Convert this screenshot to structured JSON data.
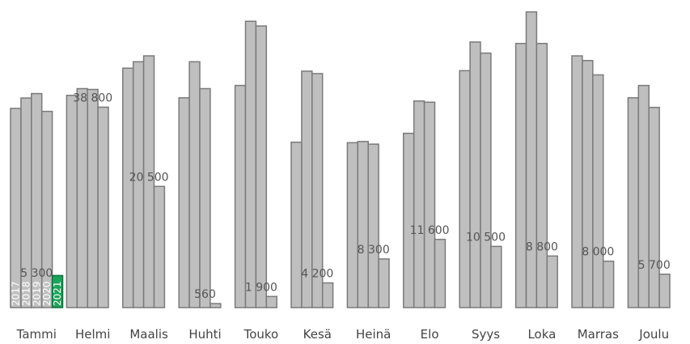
{
  "chart_data": {
    "type": "bar",
    "title": "",
    "xlabel": "",
    "ylabel": "",
    "ylim": [
      0,
      122000
    ],
    "grid": false,
    "legend": "none",
    "categories": [
      "Tammi",
      "Helmi",
      "Maalis",
      "Huhti",
      "Touko",
      "Kesä",
      "Heinä",
      "Elo",
      "Syys",
      "Loka",
      "Marras",
      "Joulu"
    ],
    "series": [
      {
        "name": "2017",
        "values": [
          80700,
          86000,
          97000,
          85000,
          90000,
          67000,
          66800,
          70600,
          96000,
          107000,
          102000,
          85000
        ]
      },
      {
        "name": "2018",
        "values": [
          84900,
          88700,
          99600,
          99600,
          116000,
          95800,
          67300,
          83700,
          107600,
          119800,
          100100,
          90000
        ]
      },
      {
        "name": "2019",
        "values": [
          86700,
          88400,
          102000,
          88700,
          114100,
          94800,
          66200,
          83200,
          103100,
          107000,
          94300,
          81100
        ]
      },
      {
        "name": "2020",
        "values": [
          79500,
          81200,
          49100,
          1600,
          4500,
          10000,
          19700,
          27600,
          24800,
          20900,
          18800,
          13500
        ]
      },
      {
        "name": "2021",
        "values": [
          13000,
          null,
          null,
          null,
          null,
          null,
          null,
          null,
          null,
          null,
          null,
          null
        ]
      }
    ],
    "current_year_labels": [
      "5 300",
      "38 800",
      "20 500",
      "560",
      "1 900",
      "4 200",
      "8 300",
      "11 600",
      "10 500",
      "8 800",
      "8 000",
      "5 700"
    ],
    "colors": {
      "bars": "#bfbfbf",
      "bar_outline": "#7a7a7a",
      "current_year": "#1aa35a"
    }
  }
}
